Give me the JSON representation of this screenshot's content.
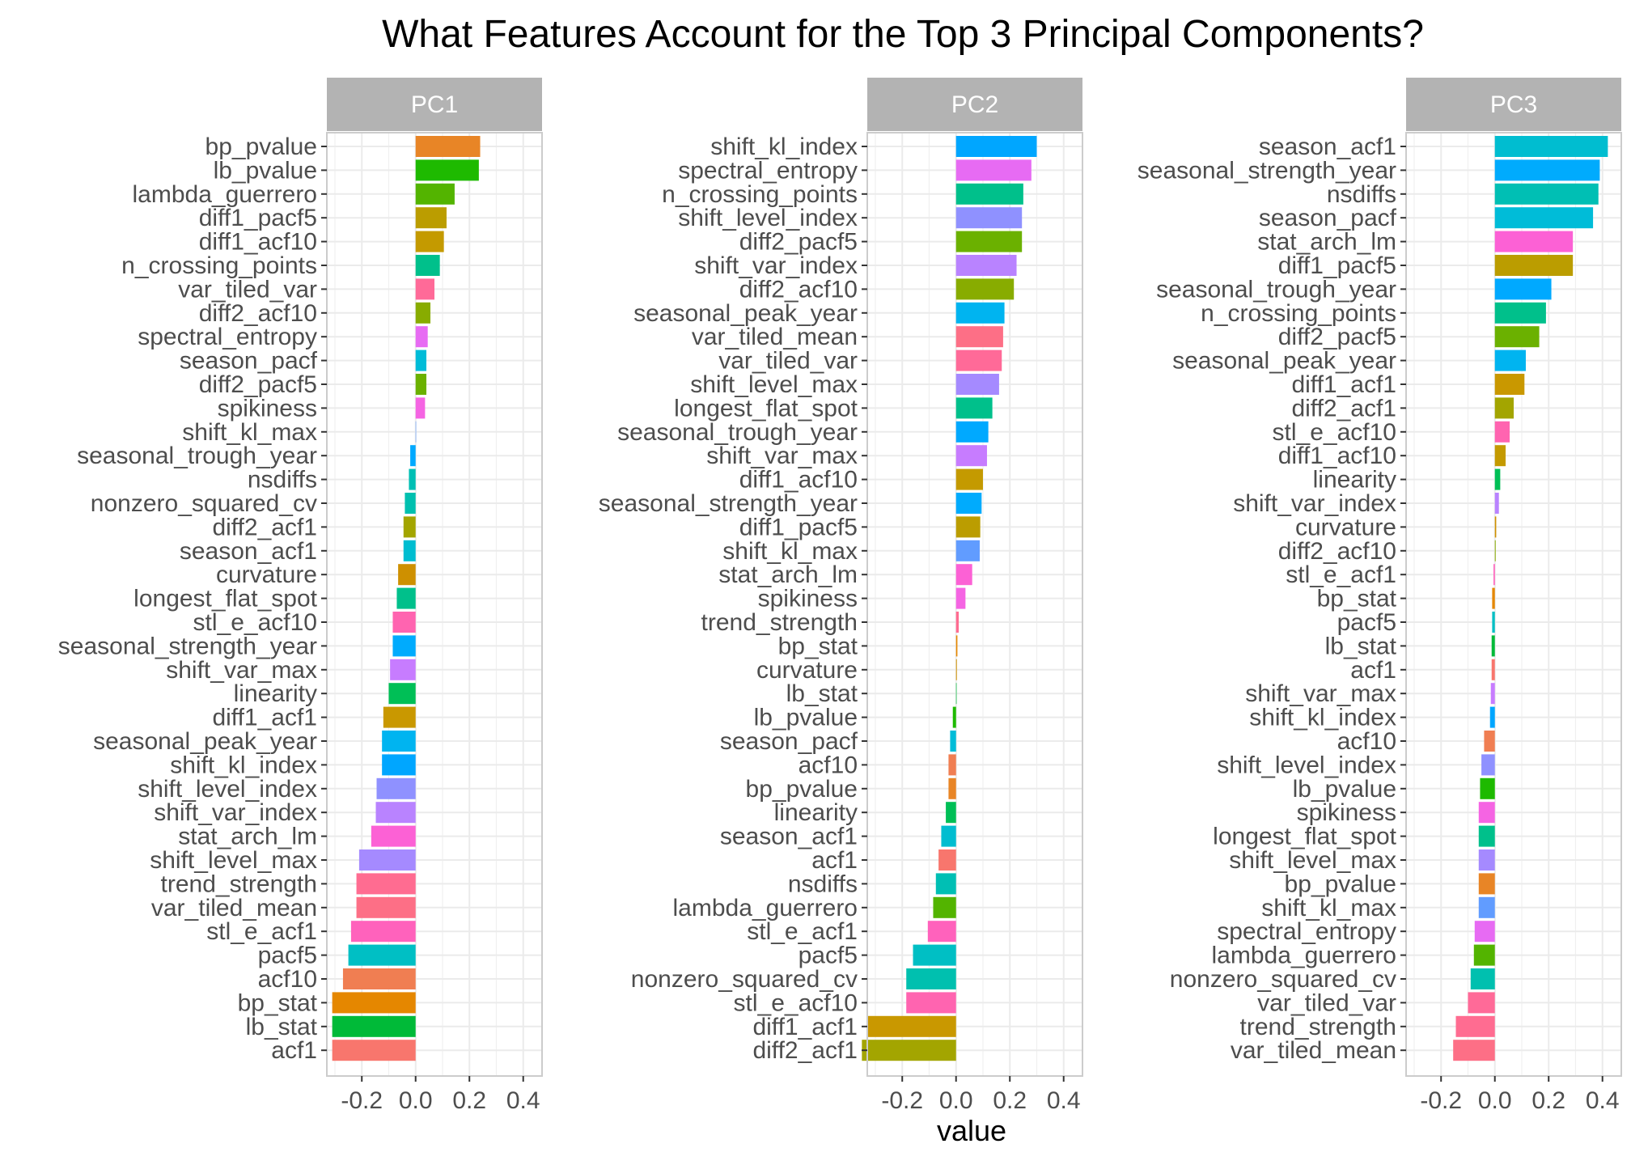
{
  "chart_data": {
    "type": "bar",
    "orientation": "horizontal",
    "title": "What Features Account for the Top 3 Principal Components?",
    "xlabel": "value",
    "ylabel": "",
    "xlim": [
      -0.33,
      0.47
    ],
    "xticks": [
      -0.2,
      0.0,
      0.2,
      0.4
    ],
    "xtick_labels": [
      "-0.2",
      "0.0",
      "0.2",
      "0.4"
    ],
    "grid": true,
    "legend": "none",
    "feature_colors": {
      "acf1": "#F8766D",
      "acf10": "#F07E52",
      "bp_pvalue": "#E88526",
      "bp_stat": "#E58700",
      "curvature": "#CE9000",
      "diff1_acf1": "#C99800",
      "diff1_acf10": "#C49A00",
      "diff1_pacf5": "#BB9D00",
      "diff2_acf1": "#A3A500",
      "diff2_acf10": "#88AC00",
      "diff2_pacf5": "#6BB100",
      "lambda_guerrero": "#53B400",
      "lb_pvalue": "#1EBA00",
      "lb_stat": "#00BA38",
      "linearity": "#00BF56",
      "longest_flat_spot": "#00C08B",
      "n_crossing_points": "#00C08B",
      "nonzero_squared_cv": "#00C0AF",
      "nsdiffs": "#00BFB4",
      "pacf5": "#00BFC4",
      "season_acf1": "#00BDD0",
      "season_pacf": "#00BCD8",
      "seasonal_peak_year": "#00B4F0",
      "seasonal_strength_year": "#00ABFD",
      "seasonal_trough_year": "#00A9FF",
      "shift_kl_index": "#00A6FF",
      "shift_kl_max": "#619CFF",
      "shift_level_index": "#8F91FF",
      "shift_level_max": "#A58AFF",
      "shift_var_index": "#B983FF",
      "shift_var_max": "#C77CFF",
      "spectral_entropy": "#E76BF3",
      "spikiness": "#F564E3",
      "stat_arch_lm": "#FC61D5",
      "stl_e_acf1": "#FF62BC",
      "stl_e_acf10": "#FF64B0",
      "trend_strength": "#FF6C91",
      "var_tiled_mean": "#FD6F86",
      "var_tiled_var": "#FF6A98"
    },
    "panels": [
      {
        "name": "PC1",
        "bars": [
          {
            "feature": "bp_pvalue",
            "value": 0.24
          },
          {
            "feature": "lb_pvalue",
            "value": 0.235
          },
          {
            "feature": "lambda_guerrero",
            "value": 0.145
          },
          {
            "feature": "diff1_pacf5",
            "value": 0.115
          },
          {
            "feature": "diff1_acf10",
            "value": 0.105
          },
          {
            "feature": "n_crossing_points",
            "value": 0.09
          },
          {
            "feature": "var_tiled_var",
            "value": 0.07
          },
          {
            "feature": "diff2_acf10",
            "value": 0.055
          },
          {
            "feature": "spectral_entropy",
            "value": 0.045
          },
          {
            "feature": "season_pacf",
            "value": 0.04
          },
          {
            "feature": "diff2_pacf5",
            "value": 0.04
          },
          {
            "feature": "spikiness",
            "value": 0.035
          },
          {
            "feature": "shift_kl_max",
            "value": 0.0
          },
          {
            "feature": "seasonal_trough_year",
            "value": -0.02
          },
          {
            "feature": "nsdiffs",
            "value": -0.025
          },
          {
            "feature": "nonzero_squared_cv",
            "value": -0.04
          },
          {
            "feature": "diff2_acf1",
            "value": -0.045
          },
          {
            "feature": "season_acf1",
            "value": -0.045
          },
          {
            "feature": "curvature",
            "value": -0.065
          },
          {
            "feature": "longest_flat_spot",
            "value": -0.07
          },
          {
            "feature": "stl_e_acf10",
            "value": -0.085
          },
          {
            "feature": "seasonal_strength_year",
            "value": -0.085
          },
          {
            "feature": "shift_var_max",
            "value": -0.095
          },
          {
            "feature": "linearity",
            "value": -0.1
          },
          {
            "feature": "diff1_acf1",
            "value": -0.12
          },
          {
            "feature": "seasonal_peak_year",
            "value": -0.125
          },
          {
            "feature": "shift_kl_index",
            "value": -0.125
          },
          {
            "feature": "shift_level_index",
            "value": -0.145
          },
          {
            "feature": "shift_var_index",
            "value": -0.148
          },
          {
            "feature": "stat_arch_lm",
            "value": -0.165
          },
          {
            "feature": "shift_level_max",
            "value": -0.21
          },
          {
            "feature": "trend_strength",
            "value": -0.22
          },
          {
            "feature": "var_tiled_mean",
            "value": -0.22
          },
          {
            "feature": "stl_e_acf1",
            "value": -0.24
          },
          {
            "feature": "pacf5",
            "value": -0.25
          },
          {
            "feature": "acf10",
            "value": -0.27
          },
          {
            "feature": "bp_stat",
            "value": -0.31
          },
          {
            "feature": "lb_stat",
            "value": -0.31
          },
          {
            "feature": "acf1",
            "value": -0.31
          }
        ]
      },
      {
        "name": "PC2",
        "bars": [
          {
            "feature": "shift_kl_index",
            "value": 0.3
          },
          {
            "feature": "spectral_entropy",
            "value": 0.28
          },
          {
            "feature": "n_crossing_points",
            "value": 0.25
          },
          {
            "feature": "shift_level_index",
            "value": 0.245
          },
          {
            "feature": "diff2_pacf5",
            "value": 0.245
          },
          {
            "feature": "shift_var_index",
            "value": 0.225
          },
          {
            "feature": "diff2_acf10",
            "value": 0.215
          },
          {
            "feature": "seasonal_peak_year",
            "value": 0.18
          },
          {
            "feature": "var_tiled_mean",
            "value": 0.175
          },
          {
            "feature": "var_tiled_var",
            "value": 0.17
          },
          {
            "feature": "shift_level_max",
            "value": 0.16
          },
          {
            "feature": "longest_flat_spot",
            "value": 0.135
          },
          {
            "feature": "seasonal_trough_year",
            "value": 0.12
          },
          {
            "feature": "shift_var_max",
            "value": 0.115
          },
          {
            "feature": "diff1_acf10",
            "value": 0.1
          },
          {
            "feature": "seasonal_strength_year",
            "value": 0.095
          },
          {
            "feature": "diff1_pacf5",
            "value": 0.09
          },
          {
            "feature": "shift_kl_max",
            "value": 0.088
          },
          {
            "feature": "stat_arch_lm",
            "value": 0.06
          },
          {
            "feature": "spikiness",
            "value": 0.035
          },
          {
            "feature": "trend_strength",
            "value": 0.01
          },
          {
            "feature": "bp_stat",
            "value": 0.005
          },
          {
            "feature": "curvature",
            "value": 0.003
          },
          {
            "feature": "lb_stat",
            "value": 0.002
          },
          {
            "feature": "lb_pvalue",
            "value": -0.012
          },
          {
            "feature": "season_pacf",
            "value": -0.022
          },
          {
            "feature": "acf10",
            "value": -0.028
          },
          {
            "feature": "bp_pvalue",
            "value": -0.028
          },
          {
            "feature": "linearity",
            "value": -0.038
          },
          {
            "feature": "season_acf1",
            "value": -0.055
          },
          {
            "feature": "acf1",
            "value": -0.065
          },
          {
            "feature": "nsdiffs",
            "value": -0.075
          },
          {
            "feature": "lambda_guerrero",
            "value": -0.085
          },
          {
            "feature": "stl_e_acf1",
            "value": -0.105
          },
          {
            "feature": "pacf5",
            "value": -0.16
          },
          {
            "feature": "nonzero_squared_cv",
            "value": -0.185
          },
          {
            "feature": "stl_e_acf10",
            "value": -0.185
          },
          {
            "feature": "diff1_acf1",
            "value": -0.33
          },
          {
            "feature": "diff2_acf1",
            "value": -0.35
          }
        ]
      },
      {
        "name": "PC3",
        "bars": [
          {
            "feature": "season_acf1",
            "value": 0.42
          },
          {
            "feature": "seasonal_strength_year",
            "value": 0.39
          },
          {
            "feature": "nsdiffs",
            "value": 0.385
          },
          {
            "feature": "season_pacf",
            "value": 0.365
          },
          {
            "feature": "stat_arch_lm",
            "value": 0.29
          },
          {
            "feature": "diff1_pacf5",
            "value": 0.29
          },
          {
            "feature": "seasonal_trough_year",
            "value": 0.21
          },
          {
            "feature": "n_crossing_points",
            "value": 0.19
          },
          {
            "feature": "diff2_pacf5",
            "value": 0.165
          },
          {
            "feature": "seasonal_peak_year",
            "value": 0.115
          },
          {
            "feature": "diff1_acf1",
            "value": 0.11
          },
          {
            "feature": "diff2_acf1",
            "value": 0.07
          },
          {
            "feature": "stl_e_acf10",
            "value": 0.055
          },
          {
            "feature": "diff1_acf10",
            "value": 0.04
          },
          {
            "feature": "linearity",
            "value": 0.02
          },
          {
            "feature": "shift_var_index",
            "value": 0.015
          },
          {
            "feature": "curvature",
            "value": 0.005
          },
          {
            "feature": "diff2_acf10",
            "value": 0.003
          },
          {
            "feature": "stl_e_acf1",
            "value": -0.005
          },
          {
            "feature": "bp_stat",
            "value": -0.01
          },
          {
            "feature": "pacf5",
            "value": -0.01
          },
          {
            "feature": "lb_stat",
            "value": -0.012
          },
          {
            "feature": "acf1",
            "value": -0.012
          },
          {
            "feature": "shift_var_max",
            "value": -0.015
          },
          {
            "feature": "shift_kl_index",
            "value": -0.018
          },
          {
            "feature": "acf10",
            "value": -0.04
          },
          {
            "feature": "shift_level_index",
            "value": -0.05
          },
          {
            "feature": "lb_pvalue",
            "value": -0.055
          },
          {
            "feature": "spikiness",
            "value": -0.06
          },
          {
            "feature": "longest_flat_spot",
            "value": -0.06
          },
          {
            "feature": "shift_level_max",
            "value": -0.06
          },
          {
            "feature": "bp_pvalue",
            "value": -0.06
          },
          {
            "feature": "shift_kl_max",
            "value": -0.06
          },
          {
            "feature": "spectral_entropy",
            "value": -0.075
          },
          {
            "feature": "lambda_guerrero",
            "value": -0.078
          },
          {
            "feature": "nonzero_squared_cv",
            "value": -0.09
          },
          {
            "feature": "var_tiled_var",
            "value": -0.1
          },
          {
            "feature": "trend_strength",
            "value": -0.145
          },
          {
            "feature": "var_tiled_mean",
            "value": -0.155
          }
        ]
      }
    ]
  }
}
